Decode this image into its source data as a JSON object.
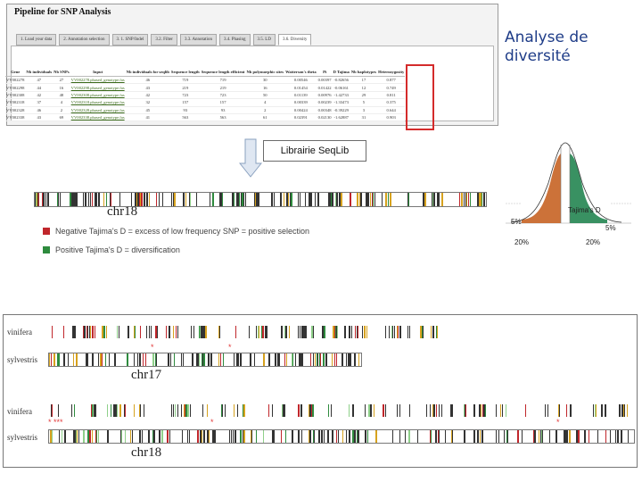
{
  "pipeline": {
    "title": "Pipeline for SNP Analysis",
    "tabs": [
      "1. Load your data",
      "2. Annotation selection",
      "3. 1. SNP/Indel",
      "3.2. Filter",
      "3.3. Annotation",
      "3.4. Phasing",
      "3.5. LD",
      "3.6. Diversity"
    ],
    "active_tab": "3.6. Diversity",
    "columns": [
      "Gene",
      "Nb individuals",
      "Nb SNPs",
      "Input",
      "Nb individuals for seqlib",
      "Sequence length",
      "Sequence length efficient",
      "Nb polymorphic sites",
      "Watterson's theta",
      "Pi",
      "D Tajima",
      "Nb haplotypes",
      "Heterozygosity"
    ],
    "rows": [
      [
        "VV002278",
        "47",
        "27",
        "VV002278.phased_genotype.fas",
        "46",
        "719",
        "719",
        "30",
        "0.00546",
        "0.00397",
        "-0.82656",
        "17",
        "0.877"
      ],
      [
        "VV002298",
        "44",
        "16",
        "VV002298.phased_genotype.fas",
        "43",
        "219",
        "219",
        "16",
        "0.01454",
        "0.01422",
        "-0.06161",
        "12",
        "0.749"
      ],
      [
        "VV002308",
        "42",
        "48",
        "VV002308.phased_genotype.fas",
        "42",
        "723",
        "723",
        "50",
        "0.01139",
        "0.00976",
        "-1.42733",
        "29",
        "0.811"
      ],
      [
        "VV002318",
        "37",
        "4",
        "VV002318.phased_genotype.fas",
        "32",
        "157",
        "157",
        "4",
        "0.00339",
        "0.00239",
        "-1.33473",
        "5",
        "0.375"
      ],
      [
        "VV002328",
        "46",
        "2",
        "VV002328.phased_genotype.fas",
        "45",
        "93",
        "93",
        "2",
        "0.00424",
        "0.00348",
        "-0.39229",
        "3",
        "0.644"
      ],
      [
        "VV002338",
        "43",
        "69",
        "VV002338.phased_genotype.fas",
        "41",
        "563",
        "563",
        "61",
        "0.02391",
        "0.02130",
        "-1.62887",
        "31",
        "0.903"
      ]
    ]
  },
  "heading": {
    "line1": "Analyse de",
    "line2": "diversité"
  },
  "library_label": "Librairie SeqLib",
  "track_top": {
    "chromosome": "chr18"
  },
  "legend": [
    {
      "text": "Negative Tajima's D = excess of low frequency SNP = positive selection",
      "color": "#c0262b"
    },
    {
      "text": "Positive Tajima's D = diversification",
      "color": "#2e8b3e"
    }
  ],
  "bell": {
    "label": "Tajima's D",
    "left_pct": "5%",
    "right_pct": "5%",
    "left_pct2": "20%",
    "right_pct2": "20%",
    "colors": {
      "left": "#c96a2e",
      "right": "#2e8b5a"
    }
  },
  "bottom": {
    "chr17": {
      "label": "chr17",
      "rows": [
        "vinifera",
        "sylvestris"
      ]
    },
    "chr18": {
      "label": "chr18",
      "rows": [
        "vinifera",
        "sylvestris"
      ]
    },
    "stars": [
      "*",
      "*",
      "* ***",
      "*",
      "*"
    ]
  }
}
